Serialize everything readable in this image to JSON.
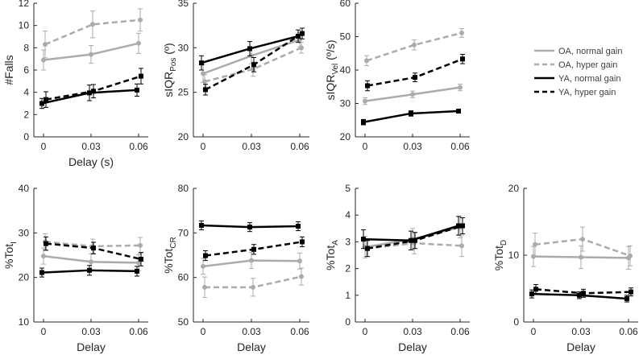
{
  "figure": {
    "legend": {
      "placement": "top-right",
      "entries": [
        {
          "label": "OA, normal gain",
          "color": "#ababab",
          "dash": "solid"
        },
        {
          "label": "OA, hyper gain",
          "color": "#ababab",
          "dash": "dashed"
        },
        {
          "label": "YA, normal gain",
          "color": "#000000",
          "dash": "solid"
        },
        {
          "label": "YA, hyper gain",
          "color": "#000000",
          "dash": "dashed"
        }
      ]
    }
  },
  "chart_data": [
    {
      "type": "line",
      "ylabel": "#Falls",
      "xlabel": "Delay (s)",
      "x": [
        0,
        0.03,
        0.06
      ],
      "x_ticks": [
        "0",
        "0.03",
        "0.06"
      ],
      "ylim": [
        0,
        12
      ],
      "y_ticks": [
        0,
        2,
        4,
        6,
        8,
        10,
        12
      ],
      "series": [
        {
          "name": "OA, normal gain",
          "values": [
            6.9,
            7.4,
            8.4
          ],
          "errors": [
            0.9,
            0.8,
            0.9
          ]
        },
        {
          "name": "OA, hyper gain",
          "values": [
            8.3,
            10.1,
            10.5
          ],
          "errors": [
            1.2,
            1.2,
            1.0
          ]
        },
        {
          "name": "YA, normal gain",
          "values": [
            3.0,
            3.95,
            4.2
          ],
          "errors": [
            0.45,
            0.7,
            0.55
          ]
        },
        {
          "name": "YA, hyper gain",
          "values": [
            3.35,
            4.1,
            5.45
          ],
          "errors": [
            0.7,
            0.6,
            0.7
          ]
        }
      ]
    },
    {
      "type": "line",
      "ylabel": "sIQR",
      "ylabel_sub": "Pos",
      "ylabel_suffix": " (º)",
      "xlabel": "",
      "x": [
        0,
        0.03,
        0.06
      ],
      "x_ticks": [
        "0",
        "0.03",
        "0.06"
      ],
      "ylim": [
        20,
        35
      ],
      "y_ticks": [
        20,
        25,
        30,
        35
      ],
      "series": [
        {
          "name": "OA, normal gain",
          "values": [
            27.1,
            29.1,
            30.9
          ],
          "errors": [
            1.0,
            0.9,
            0.8
          ]
        },
        {
          "name": "OA, hyper gain",
          "values": [
            26.2,
            27.6,
            30.0
          ],
          "errors": [
            0.8,
            0.8,
            0.6
          ]
        },
        {
          "name": "YA, normal gain",
          "values": [
            28.3,
            29.9,
            31.3
          ],
          "errors": [
            0.8,
            0.8,
            0.7
          ]
        },
        {
          "name": "YA, hyper gain",
          "values": [
            25.3,
            28.1,
            31.6
          ],
          "errors": [
            0.6,
            0.8,
            0.6
          ]
        }
      ]
    },
    {
      "type": "line",
      "ylabel": "sIQR",
      "ylabel_sub": "Vel",
      "ylabel_suffix": " (º/s)",
      "xlabel": "",
      "x": [
        0,
        0.03,
        0.06
      ],
      "x_ticks": [
        "0",
        "0.03",
        "0.06"
      ],
      "ylim": [
        20,
        60
      ],
      "y_ticks": [
        20,
        30,
        40,
        50,
        60
      ],
      "series": [
        {
          "name": "OA, normal gain",
          "values": [
            30.7,
            32.7,
            34.8
          ],
          "errors": [
            1.0,
            1.0,
            1.0
          ]
        },
        {
          "name": "OA, hyper gain",
          "values": [
            42.8,
            47.5,
            51.1
          ],
          "errors": [
            1.5,
            1.5,
            1.3
          ]
        },
        {
          "name": "YA, normal gain",
          "values": [
            24.4,
            27.0,
            27.7
          ],
          "errors": [
            0.8,
            0.8,
            0.6
          ]
        },
        {
          "name": "YA, hyper gain",
          "values": [
            35.3,
            37.8,
            43.3
          ],
          "errors": [
            1.5,
            1.3,
            1.4
          ]
        }
      ]
    },
    {
      "type": "line",
      "ylabel": "%Tot",
      "ylabel_sub": "I",
      "xlabel": "Delay",
      "x": [
        0,
        0.03,
        0.06
      ],
      "x_ticks": [
        "0",
        "0.03",
        "0.06"
      ],
      "ylim": [
        10,
        40
      ],
      "y_ticks": [
        10,
        20,
        30,
        40
      ],
      "series": [
        {
          "name": "OA, normal gain",
          "values": [
            24.8,
            23.5,
            23.3
          ],
          "errors": [
            1.8,
            1.8,
            1.8
          ]
        },
        {
          "name": "OA, hyper gain",
          "values": [
            28.0,
            27.0,
            27.2
          ],
          "errors": [
            1.8,
            1.6,
            1.8
          ]
        },
        {
          "name": "YA, normal gain",
          "values": [
            21.1,
            21.6,
            21.4
          ],
          "errors": [
            1.0,
            1.1,
            1.1
          ]
        },
        {
          "name": "YA, hyper gain",
          "values": [
            27.6,
            26.6,
            24.1
          ],
          "errors": [
            1.5,
            1.3,
            1.5
          ]
        }
      ]
    },
    {
      "type": "line",
      "ylabel": "%Tot",
      "ylabel_sub": "CR",
      "xlabel": "Delay",
      "x": [
        0,
        0.03,
        0.06
      ],
      "x_ticks": [
        "0",
        "0.03",
        "0.06"
      ],
      "ylim": [
        50,
        80
      ],
      "y_ticks": [
        50,
        60,
        70,
        80
      ],
      "series": [
        {
          "name": "OA, normal gain",
          "values": [
            62.5,
            63.8,
            63.7
          ],
          "errors": [
            1.8,
            1.8,
            1.8
          ]
        },
        {
          "name": "OA, hyper gain",
          "values": [
            57.8,
            57.8,
            60.2
          ],
          "errors": [
            2.3,
            2.0,
            1.9
          ]
        },
        {
          "name": "YA, normal gain",
          "values": [
            71.7,
            71.3,
            71.5
          ],
          "errors": [
            1.0,
            1.0,
            1.0
          ]
        },
        {
          "name": "YA, hyper gain",
          "values": [
            64.9,
            66.3,
            68.0
          ],
          "errors": [
            1.1,
            1.1,
            1.1
          ]
        }
      ]
    },
    {
      "type": "line",
      "ylabel": "%Tot",
      "ylabel_sub": "A",
      "xlabel": "Delay",
      "x": [
        0,
        0.03,
        0.06
      ],
      "x_ticks": [
        "0",
        "0.03",
        "0.06"
      ],
      "ylim": [
        0,
        5
      ],
      "y_ticks": [
        0,
        1,
        2,
        3,
        4,
        5
      ],
      "series": [
        {
          "name": "OA, normal gain",
          "values": [
            2.8,
            3.1,
            3.55
          ],
          "errors": [
            0.4,
            0.4,
            0.4
          ]
        },
        {
          "name": "OA, hyper gain",
          "values": [
            2.75,
            2.95,
            2.85
          ],
          "errors": [
            0.3,
            0.4,
            0.4
          ]
        },
        {
          "name": "YA, normal gain",
          "values": [
            3.1,
            3.05,
            3.6
          ],
          "errors": [
            0.35,
            0.35,
            0.35
          ]
        },
        {
          "name": "YA, hyper gain",
          "values": [
            2.75,
            3.05,
            3.6
          ],
          "errors": [
            0.3,
            0.3,
            0.3
          ]
        }
      ]
    },
    {
      "type": "line",
      "ylabel": "%Tot",
      "ylabel_sub": "D",
      "xlabel": "Delay",
      "x": [
        0,
        0.03,
        0.06
      ],
      "x_ticks": [
        "0",
        "0.03",
        "0.06"
      ],
      "ylim": [
        0,
        20
      ],
      "y_ticks": [
        0,
        10,
        20
      ],
      "series": [
        {
          "name": "OA, normal gain",
          "values": [
            9.8,
            9.7,
            9.6
          ],
          "errors": [
            1.5,
            1.7,
            1.7
          ]
        },
        {
          "name": "OA, hyper gain",
          "values": [
            11.6,
            12.4,
            9.9
          ],
          "errors": [
            1.7,
            1.8,
            1.5
          ]
        },
        {
          "name": "YA, normal gain",
          "values": [
            4.2,
            4.0,
            3.5
          ],
          "errors": [
            0.6,
            0.5,
            0.5
          ]
        },
        {
          "name": "YA, hyper gain",
          "values": [
            4.9,
            4.3,
            4.5
          ],
          "errors": [
            0.7,
            0.6,
            0.6
          ]
        }
      ]
    }
  ]
}
